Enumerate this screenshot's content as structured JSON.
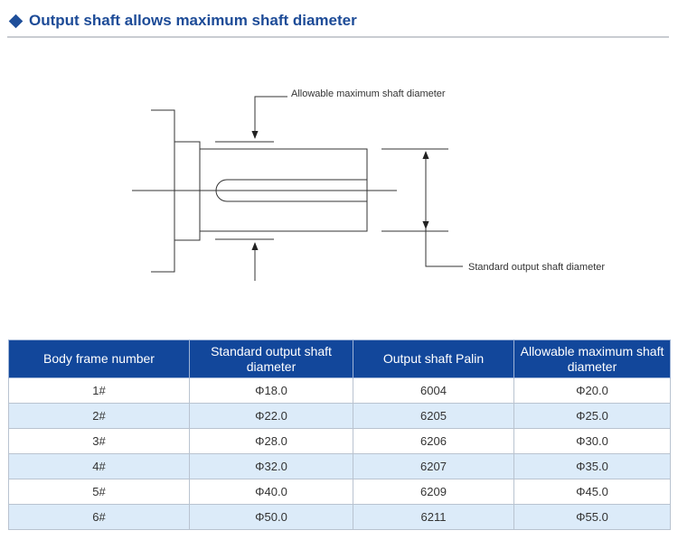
{
  "header": {
    "title": "Output shaft allows maximum shaft diameter",
    "accent_color": "#1d4b97"
  },
  "diagram": {
    "label_max": "Allowable maximum shaft diameter",
    "label_standard": "Standard output shaft diameter"
  },
  "table": {
    "header_color": "#12479b",
    "alt_row_color": "#dcebf9",
    "columns": [
      "Body frame number",
      "Standard output shaft diameter",
      "Output shaft Palin",
      "Allowable maximum shaft diameter"
    ],
    "rows": [
      [
        "1#",
        "Φ18.0",
        "6004",
        "Φ20.0"
      ],
      [
        "2#",
        "Φ22.0",
        "6205",
        "Φ25.0"
      ],
      [
        "3#",
        "Φ28.0",
        "6206",
        "Φ30.0"
      ],
      [
        "4#",
        "Φ32.0",
        "6207",
        "Φ35.0"
      ],
      [
        "5#",
        "Φ40.0",
        "6209",
        "Φ45.0"
      ],
      [
        "6#",
        "Φ50.0",
        "6211",
        "Φ55.0"
      ]
    ]
  }
}
